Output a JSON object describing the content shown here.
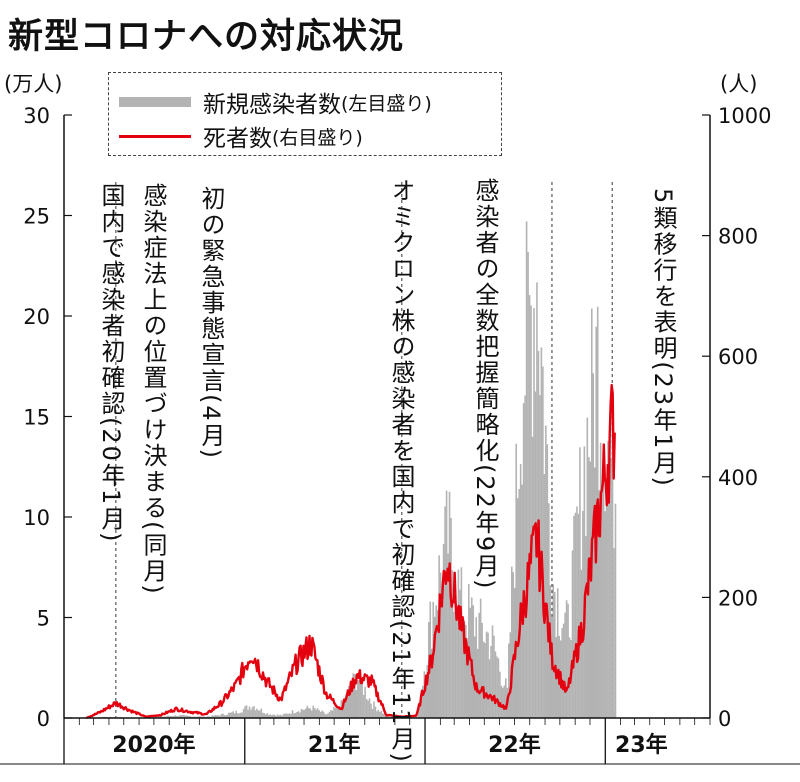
{
  "title": "新型コロナへの対応状況",
  "left_unit": "(万人)",
  "right_unit": "(人)",
  "legend": {
    "cases": {
      "label": "新規感染者数",
      "sub": "(左目盛り)",
      "color": "#b3b3b3"
    },
    "deaths": {
      "label": "死者数",
      "sub": "(右目盛り)",
      "color": "#e3000f"
    }
  },
  "annotations": [
    {
      "id": "first-case",
      "text": "国内で感染者初確認(20年1月)"
    },
    {
      "id": "legal-status",
      "text": "感染症法上の位置づけ決まる(同月)"
    },
    {
      "id": "emergency",
      "text": "初の緊急事態宣言(4月)"
    },
    {
      "id": "omicron",
      "text": "オミクロン株の感染者を国内で初確認(21年11月)"
    },
    {
      "id": "full-count",
      "text": "感染者の全数把握簡略化(22年9月)"
    },
    {
      "id": "class5",
      "text": "5類移行を表明(23年1月)"
    }
  ],
  "chart_data": {
    "type": "area",
    "title": "新型コロナへの対応状況",
    "x_categories": [
      "2020年",
      "21年",
      "22年",
      "23年"
    ],
    "left_axis": {
      "unit": "万人",
      "min": 0,
      "max": 30,
      "ticks": [
        0,
        5,
        10,
        15,
        20,
        25,
        30
      ]
    },
    "right_axis": {
      "unit": "人",
      "min": 0,
      "max": 1000,
      "ticks": [
        0,
        200,
        400,
        600,
        800,
        1000
      ]
    },
    "series": [
      {
        "name": "新規感染者数",
        "type": "area",
        "axis": "left",
        "x": [
          "2020-01",
          "2020-02",
          "2020-03",
          "2020-04",
          "2020-05",
          "2020-06",
          "2020-07",
          "2020-08",
          "2020-09",
          "2020-10",
          "2020-11",
          "2020-12",
          "2021-01",
          "2021-02",
          "2021-03",
          "2021-04",
          "2021-05",
          "2021-06",
          "2021-07",
          "2021-08",
          "2021-09",
          "2021-10",
          "2021-11",
          "2021-12",
          "2022-01",
          "2022-02",
          "2022-03",
          "2022-04",
          "2022-05",
          "2022-06",
          "2022-07",
          "2022-08",
          "2022-09",
          "2022-10",
          "2022-11",
          "2022-12",
          "2023-01"
        ],
        "values": [
          0,
          0,
          0.05,
          0.05,
          0.02,
          0.01,
          0.08,
          0.15,
          0.1,
          0.08,
          0.2,
          0.35,
          0.75,
          0.25,
          0.15,
          0.45,
          0.6,
          0.2,
          0.8,
          2.5,
          0.8,
          0.1,
          0.02,
          0.05,
          6.5,
          10.5,
          6.5,
          5.5,
          4.5,
          1.5,
          20.0,
          26.0,
          8.0,
          5.0,
          14.0,
          21.0,
          14.0
        ]
      },
      {
        "name": "死者数",
        "type": "line",
        "axis": "right",
        "x": [
          "2020-01",
          "2020-02",
          "2020-03",
          "2020-04",
          "2020-05",
          "2020-06",
          "2020-07",
          "2020-08",
          "2020-09",
          "2020-10",
          "2020-11",
          "2020-12",
          "2021-01",
          "2021-02",
          "2021-03",
          "2021-04",
          "2021-05",
          "2021-06",
          "2021-07",
          "2021-08",
          "2021-09",
          "2021-10",
          "2021-11",
          "2021-12",
          "2022-01",
          "2022-02",
          "2022-03",
          "2022-04",
          "2022-05",
          "2022-06",
          "2022-07",
          "2022-08",
          "2022-09",
          "2022-10",
          "2022-11",
          "2022-12",
          "2023-01"
        ],
        "values": [
          0,
          0,
          10,
          25,
          12,
          2,
          5,
          15,
          10,
          6,
          25,
          55,
          110,
          60,
          30,
          90,
          125,
          40,
          15,
          70,
          60,
          5,
          2,
          4,
          100,
          265,
          150,
          50,
          35,
          15,
          170,
          300,
          100,
          40,
          150,
          320,
          480
        ]
      }
    ]
  }
}
